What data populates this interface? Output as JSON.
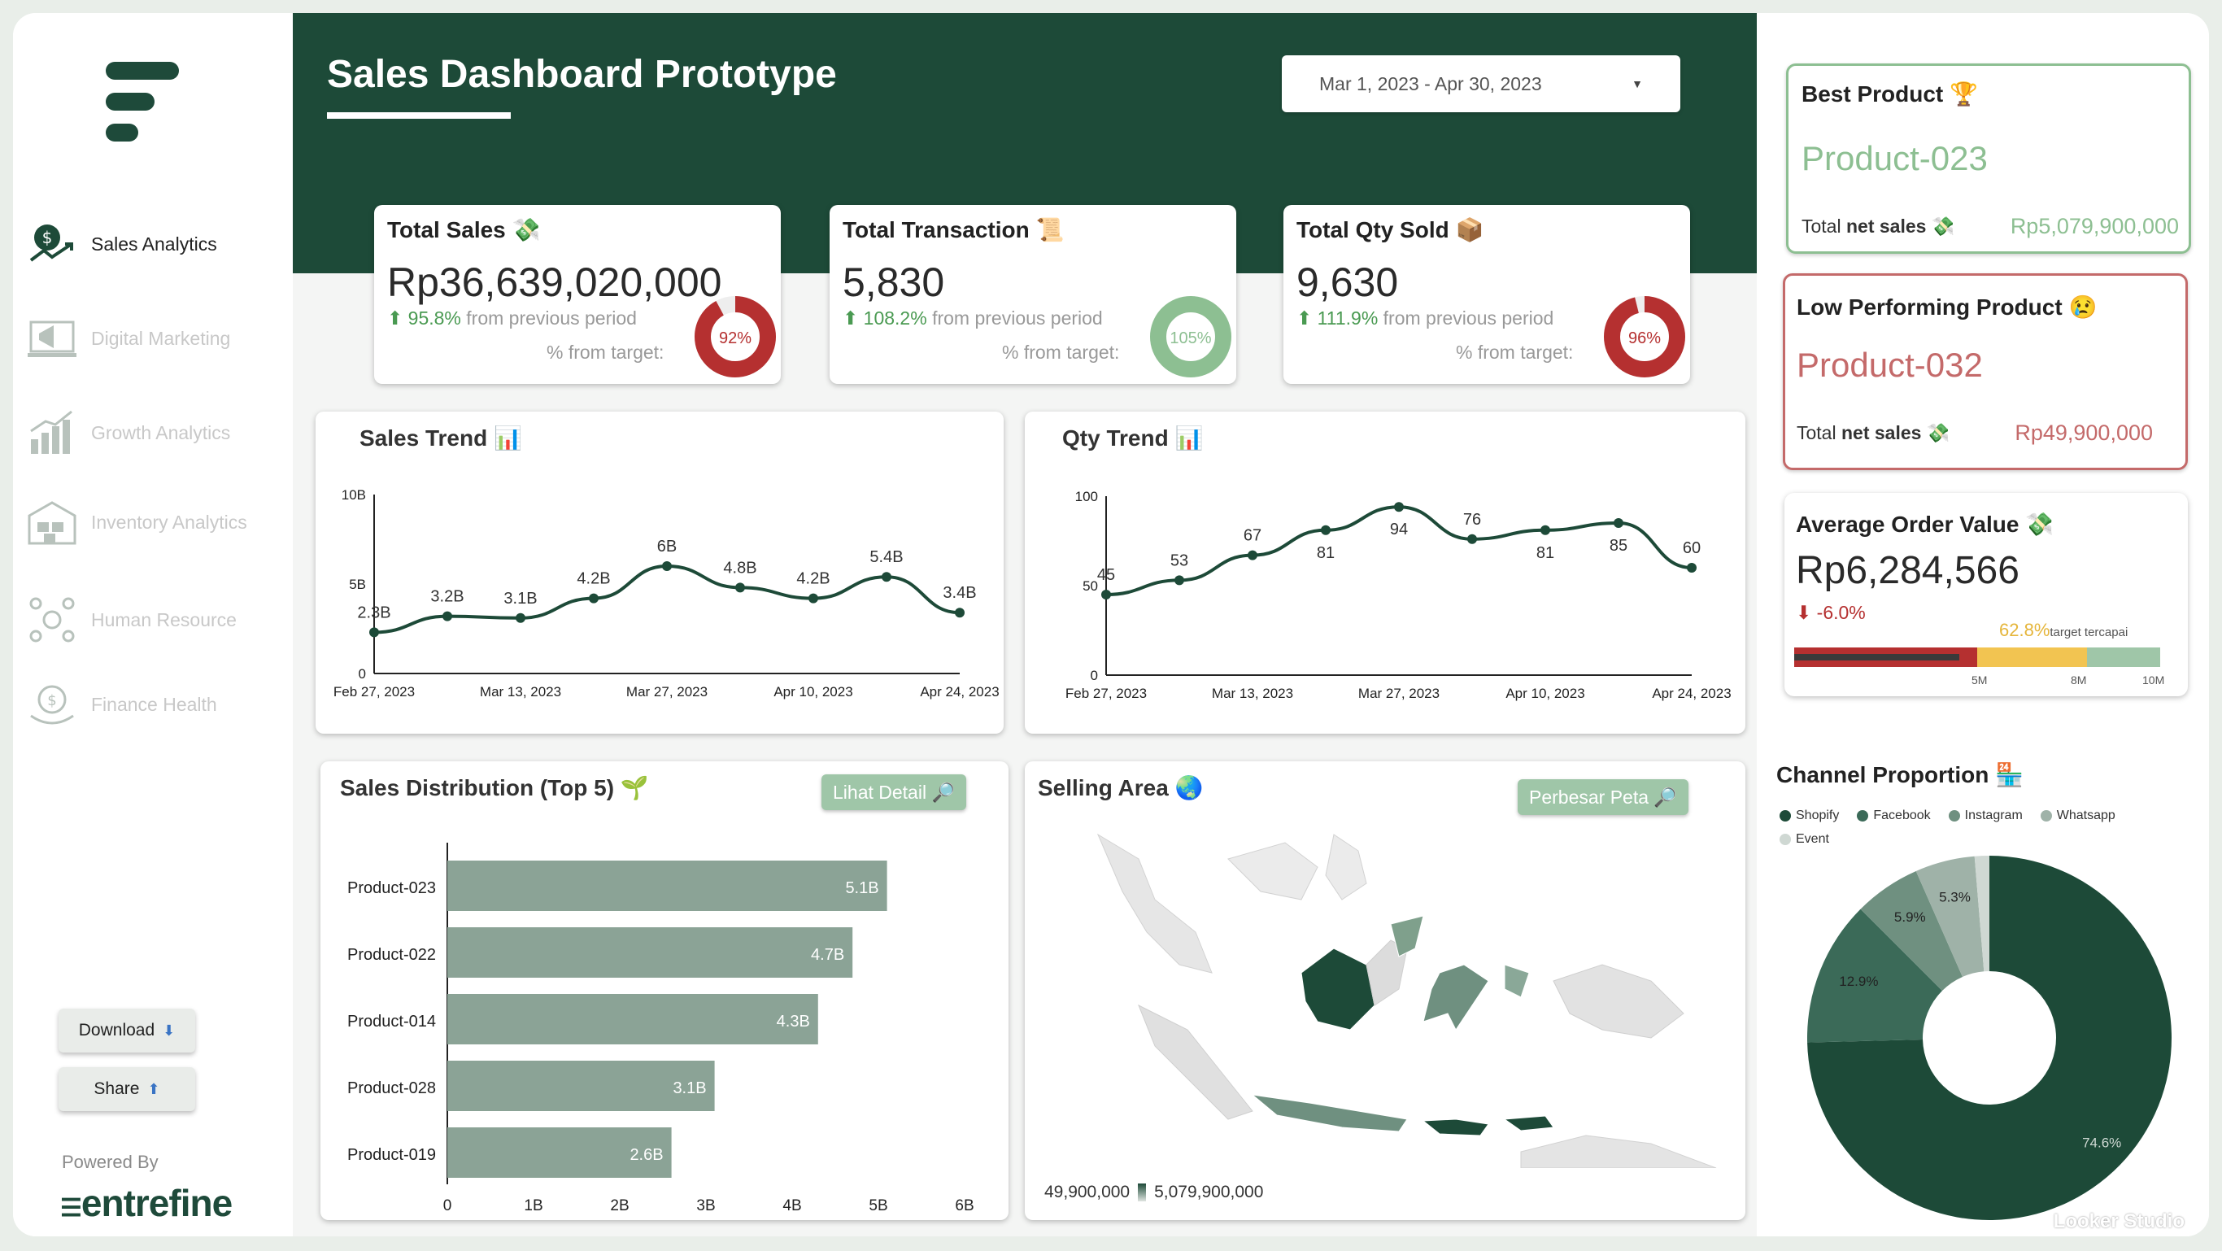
{
  "header": {
    "title": "Sales Dashboard Prototype",
    "date_range": "Mar 1, 2023 - Apr 30, 2023"
  },
  "sidebar": {
    "items": [
      {
        "label": "Sales Analytics",
        "icon": "dollar-chart-icon",
        "active": true
      },
      {
        "label": "Digital Marketing",
        "icon": "megaphone-icon",
        "active": false
      },
      {
        "label": "Growth Analytics",
        "icon": "growth-bar-icon",
        "active": false
      },
      {
        "label": "Inventory Analytics",
        "icon": "warehouse-icon",
        "active": false
      },
      {
        "label": "Human Resource",
        "icon": "people-network-icon",
        "active": false
      },
      {
        "label": "Finance Health",
        "icon": "money-hand-icon",
        "active": false
      }
    ],
    "download_label": "Download",
    "share_label": "Share",
    "powered_by": "Powered By",
    "brand": "entrefine"
  },
  "kpis": {
    "sales": {
      "title": "Total Sales 💸",
      "value": "Rp36,639,020,000",
      "change": "95.8%",
      "change_suffix": " from previous period",
      "target_label": "% from target:",
      "target": "92%",
      "target_fraction": 0.92,
      "ring_color": "#b53030"
    },
    "transaction": {
      "title": "Total Transaction 📜",
      "value": "5,830",
      "change": "108.2%",
      "change_suffix": " from previous period",
      "target_label": "% from target:",
      "target": "105%",
      "target_fraction": 1.0,
      "ring_color": "#8dbf92"
    },
    "qty": {
      "title": "Total Qty Sold 📦",
      "value": "9,630",
      "change": "111.9%",
      "change_suffix": " from previous period",
      "target_label": "% from target:",
      "target": "96%",
      "target_fraction": 0.96,
      "ring_color": "#b53030"
    }
  },
  "sales_trend": {
    "title": "Sales Trend 📊",
    "chart_data": {
      "type": "line",
      "x": [
        "Feb 27, 2023",
        "Mar 6, 2023",
        "Mar 13, 2023",
        "Mar 20, 2023",
        "Mar 27, 2023",
        "Apr 3, 2023",
        "Apr 10, 2023",
        "Apr 17, 2023",
        "Apr 24, 2023"
      ],
      "values": [
        2.3,
        3.2,
        3.1,
        4.2,
        6,
        4.8,
        4.2,
        5.4,
        3.4
      ],
      "labels": [
        "2.3B",
        "3.2B",
        "3.1B",
        "4.2B",
        "6B",
        "4.8B",
        "4.2B",
        "5.4B",
        "3.4B"
      ],
      "xticks": [
        "Feb 27, 2023",
        "Mar 13, 2023",
        "Mar 27, 2023",
        "Apr 10, 2023",
        "Apr 24, 2023"
      ],
      "yticks": [
        "0",
        "5B",
        "10B"
      ],
      "ylim": [
        0,
        10
      ]
    }
  },
  "qty_trend": {
    "title": "Qty Trend 📊",
    "chart_data": {
      "type": "line",
      "x": [
        "Feb 27, 2023",
        "Mar 6, 2023",
        "Mar 13, 2023",
        "Mar 20, 2023",
        "Mar 27, 2023",
        "Apr 3, 2023",
        "Apr 10, 2023",
        "Apr 17, 2023",
        "Apr 24, 2023"
      ],
      "values": [
        45,
        53,
        67,
        81,
        94,
        76,
        81,
        85,
        60
      ],
      "labels": [
        "45",
        "53",
        "67",
        "81",
        "94",
        "76",
        "81",
        "85",
        "60"
      ],
      "xticks": [
        "Feb 27, 2023",
        "Mar 13, 2023",
        "Mar 27, 2023",
        "Apr 10, 2023",
        "Apr 24, 2023"
      ],
      "yticks": [
        "0",
        "50",
        "100"
      ],
      "ylim": [
        0,
        100
      ]
    }
  },
  "distribution": {
    "title": "Sales Distribution (Top 5) 🌱",
    "button": "Lihat Detail 🔎",
    "chart_data": {
      "type": "bar",
      "categories": [
        "Product-023",
        "Product-022",
        "Product-014",
        "Product-028",
        "Product-019"
      ],
      "values": [
        5.1,
        4.7,
        4.3,
        3.1,
        2.6
      ],
      "labels": [
        "5.1B",
        "4.7B",
        "4.3B",
        "3.1B",
        "2.6B"
      ],
      "xticks": [
        "0",
        "1B",
        "2B",
        "3B",
        "4B",
        "5B",
        "6B"
      ],
      "xlim": [
        0,
        6
      ]
    }
  },
  "selling_area": {
    "title": "Selling Area 🌏",
    "button": "Perbesar Peta 🔎",
    "scale_min": "49,900,000",
    "scale_max": "5,079,900,000"
  },
  "best": {
    "title": "Best Product 🏆",
    "product": "Product-023",
    "net_label": "Total ",
    "net_bold": "net sales",
    "net_emoji": " 💸",
    "value": "Rp5,079,900,000"
  },
  "low": {
    "title": "Low Performing Product 😢",
    "product": "Product-032",
    "net_label": "Total ",
    "net_bold": "net sales",
    "net_emoji": " 💸",
    "value": "Rp49,900,000"
  },
  "aov": {
    "title": "Average Order Value 💸",
    "value": "Rp6,284,566",
    "change": "-6.0%",
    "pct": "62.8%",
    "pct_label": "target tercapai",
    "ticks": [
      "5M",
      "8M",
      "10M"
    ],
    "fraction": 0.628
  },
  "channel": {
    "title": "Channel Proportion 🏪",
    "chart_data": {
      "type": "pie",
      "labels": [
        "Shopify",
        "Facebook",
        "Instagram",
        "Whatsapp",
        "Event"
      ],
      "values": [
        74.6,
        12.9,
        5.9,
        5.3,
        1.3
      ],
      "value_labels": [
        "74.6%",
        "12.9%",
        "5.9%",
        "5.3%",
        ""
      ],
      "colors": [
        "#1d4a38",
        "#3b6a58",
        "#6f9080",
        "#9fb2a8",
        "#cfd8d3"
      ]
    }
  },
  "footer": {
    "looker": "Looker Studio"
  }
}
